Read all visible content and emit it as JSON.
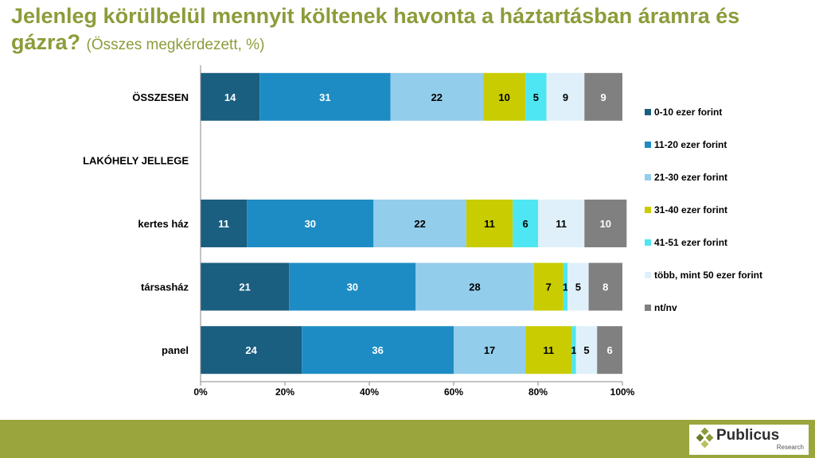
{
  "header": {
    "title_main": "Jelenleg körülbelül mennyit költenek havonta a háztartásban áramra és gázra?",
    "title_sub": "(Összes megkérdezett, %)"
  },
  "chart_data": {
    "type": "bar",
    "orientation": "horizontal",
    "stacked": true,
    "categories": [
      "ÖSSZESEN",
      "LAKÓHELY JELLEGE",
      "kertes ház",
      "társasház",
      "panel"
    ],
    "series": [
      {
        "name": "0-10 ezer forint",
        "color": "#1a5e80",
        "values": [
          14,
          null,
          11,
          21,
          24
        ],
        "labels": [
          "14",
          "",
          "11",
          "21",
          "24"
        ]
      },
      {
        "name": "11-20 ezer forint",
        "color": "#1e8cc4",
        "values": [
          31,
          null,
          30,
          30,
          36
        ],
        "labels": [
          "31",
          "",
          "30",
          "30",
          "36"
        ]
      },
      {
        "name": "21-30 ezer forint",
        "color": "#93cdec",
        "values": [
          22,
          null,
          22,
          28,
          17
        ],
        "labels": [
          "22",
          "",
          "22",
          "28",
          "17"
        ]
      },
      {
        "name": "31-40 ezer forint",
        "color": "#c8cc00",
        "values": [
          10,
          null,
          11,
          7,
          11
        ],
        "labels": [
          "10",
          "",
          "11",
          "7",
          "11"
        ]
      },
      {
        "name": "41-51 ezer forint",
        "color": "#4ee6f2",
        "values": [
          5,
          null,
          6,
          1,
          1
        ],
        "labels": [
          "5",
          "",
          "6",
          "1",
          "1"
        ]
      },
      {
        "name": "több, mint 50 ezer forint",
        "color": "#dff0fa",
        "values": [
          9,
          null,
          11,
          5,
          5
        ],
        "labels": [
          "9",
          "",
          "11",
          "5",
          "5"
        ]
      },
      {
        "name": "nt/nv",
        "color": "#808080",
        "values": [
          9,
          null,
          10,
          8,
          6
        ],
        "labels": [
          "9",
          "",
          "10",
          "8",
          "6"
        ]
      }
    ],
    "xlim": [
      0,
      100
    ],
    "xticks": [
      0,
      20,
      40,
      60,
      80,
      100
    ],
    "xtick_labels": [
      "0%",
      "20%",
      "40%",
      "60%",
      "80%",
      "100%"
    ],
    "legend_position": "right"
  },
  "footer": {
    "logo_text": "Publicus",
    "logo_sub": "Research",
    "band_color": "#9aa53d"
  }
}
